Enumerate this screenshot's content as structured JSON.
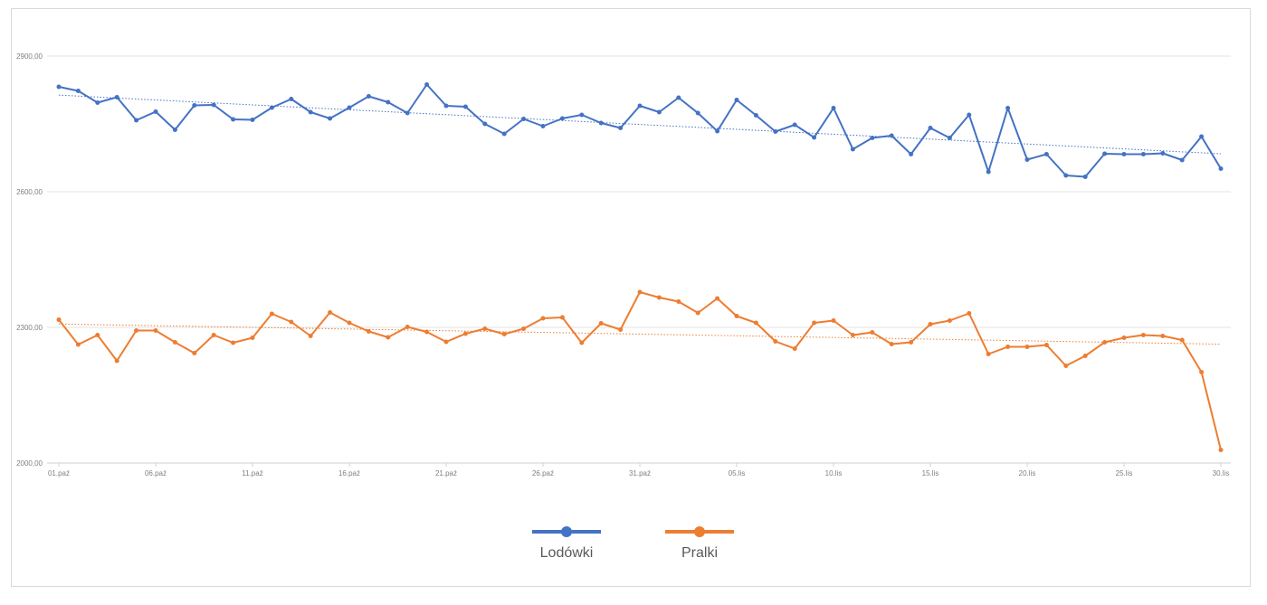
{
  "chart_data": {
    "type": "line",
    "title": "",
    "xlabel": "",
    "ylabel": "",
    "ylim": [
      2000,
      2900
    ],
    "yticks": [
      "2900,00",
      "2600,00",
      "2300,00",
      "2000,00"
    ],
    "ytick_values": [
      2900,
      2600,
      2300,
      2000
    ],
    "grid": true,
    "legend_position": "bottom",
    "x": [
      "01.paź",
      "02.paź",
      "03.paź",
      "04.paź",
      "05.paź",
      "06.paź",
      "07.paź",
      "08.paź",
      "09.paź",
      "10.paź",
      "11.paź",
      "12.paź",
      "13.paź",
      "14.paź",
      "15.paź",
      "16.paź",
      "17.paź",
      "18.paź",
      "19.paź",
      "20.paź",
      "21.paź",
      "22.paź",
      "23.paź",
      "24.paź",
      "25.paź",
      "26.paź",
      "27.paź",
      "28.paź",
      "29.paź",
      "30.paź",
      "31.paź",
      "01.lis",
      "02.lis",
      "03.lis",
      "04.lis",
      "05.lis",
      "06.lis",
      "07.lis",
      "08.lis",
      "09.lis",
      "10.lis",
      "11.lis",
      "12.lis",
      "13.lis",
      "14.lis",
      "15.lis",
      "16.lis",
      "17.lis",
      "18.lis",
      "19.lis",
      "20.lis",
      "21.lis",
      "22.lis",
      "23.lis",
      "24.lis",
      "25.lis",
      "26.lis",
      "27.lis",
      "28.lis",
      "29.lis",
      "30.lis"
    ],
    "xtick_labels": [
      "01.paź",
      "06.paź",
      "11.paź",
      "16.paź",
      "21.paź",
      "26.paź",
      "31.paź",
      "05.lis",
      "10.lis",
      "15.lis",
      "20.lis",
      "25.lis",
      "30.lis"
    ],
    "xtick_indices": [
      0,
      5,
      10,
      15,
      20,
      25,
      30,
      35,
      40,
      45,
      50,
      55,
      60
    ],
    "series": [
      {
        "name": "Lodówki",
        "color": "#4472c4",
        "trendline": true,
        "values": [
          2832,
          2823,
          2797,
          2809,
          2758,
          2777,
          2737,
          2791,
          2792,
          2760,
          2759,
          2786,
          2805,
          2776,
          2762,
          2786,
          2811,
          2798,
          2774,
          2837,
          2790,
          2788,
          2750,
          2728,
          2761,
          2745,
          2762,
          2770,
          2752,
          2741,
          2790,
          2776,
          2808,
          2774,
          2734,
          2803,
          2769,
          2733,
          2748,
          2720,
          2785,
          2694,
          2719,
          2724,
          2683,
          2741,
          2719,
          2770,
          2644,
          2785,
          2671,
          2683,
          2636,
          2633,
          2684,
          2683,
          2683,
          2685,
          2670,
          2722,
          2651
        ]
      },
      {
        "name": "Pralki",
        "color": "#ed7d31",
        "trendline": true,
        "values": [
          2317,
          2262,
          2283,
          2226,
          2293,
          2293,
          2267,
          2243,
          2283,
          2266,
          2277,
          2330,
          2312,
          2281,
          2333,
          2310,
          2291,
          2278,
          2301,
          2290,
          2268,
          2286,
          2297,
          2285,
          2297,
          2320,
          2322,
          2266,
          2309,
          2295,
          2378,
          2366,
          2357,
          2332,
          2364,
          2325,
          2310,
          2269,
          2253,
          2310,
          2315,
          2283,
          2289,
          2263,
          2267,
          2307,
          2315,
          2331,
          2241,
          2257,
          2257,
          2261,
          2215,
          2237,
          2267,
          2277,
          2283,
          2281,
          2272,
          2201,
          2029
        ]
      }
    ]
  }
}
